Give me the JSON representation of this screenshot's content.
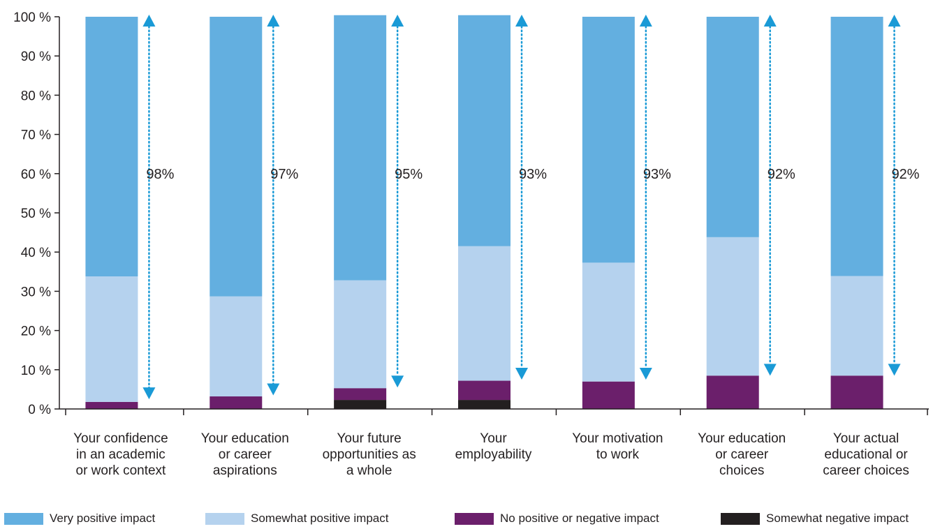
{
  "chart_data": {
    "type": "bar",
    "stacked": true,
    "ylim": [
      0,
      100
    ],
    "y_ticks": [
      "0 %",
      "10 %",
      "20 %",
      "30 %",
      "40 %",
      "50 %",
      "60 %",
      "70 %",
      "80 %",
      "90 %",
      "100 %"
    ],
    "categories": [
      [
        "Your confidence",
        "in an academic",
        "or work context"
      ],
      [
        "Your education",
        "or career",
        "aspirations"
      ],
      [
        "Your future",
        "opportunities as",
        "a whole"
      ],
      [
        "Your",
        "employability"
      ],
      [
        "Your motivation",
        "to work"
      ],
      [
        "Your education",
        "or career",
        "choices"
      ],
      [
        "Your actual",
        "educational or",
        "career choices"
      ]
    ],
    "series": [
      {
        "name": "Somewhat negative impact",
        "color": "#231f20",
        "values": [
          0,
          0,
          2.3,
          2.3,
          0,
          0,
          0
        ]
      },
      {
        "name": "No positive or negative impact",
        "color": "#6b1f6b",
        "values": [
          1.8,
          3.2,
          3.0,
          4.9,
          7.0,
          8.5,
          8.5
        ]
      },
      {
        "name": "Somewhat positive impact",
        "color": "#b5d2ee",
        "values": [
          32.0,
          25.5,
          27.5,
          34.3,
          30.3,
          35.3,
          25.4
        ]
      },
      {
        "name": "Very positive impact",
        "color": "#63afe0",
        "values": [
          66.2,
          71.3,
          67.6,
          58.9,
          62.7,
          56.2,
          66.1
        ]
      }
    ],
    "annotations": [
      {
        "text": "98%",
        "from": 100,
        "to": 3
      },
      {
        "text": "97%",
        "from": 100,
        "to": 4
      },
      {
        "text": "95%",
        "from": 100,
        "to": 6
      },
      {
        "text": "93%",
        "from": 100,
        "to": 8
      },
      {
        "text": "93%",
        "from": 100,
        "to": 8
      },
      {
        "text": "92%",
        "from": 100,
        "to": 9
      },
      {
        "text": "92%",
        "from": 100,
        "to": 9
      }
    ],
    "annotation_color": "#1a9ad6",
    "axis_color": "#231f20",
    "legend_placement": "bottom",
    "grid": false
  },
  "legend": [
    {
      "label": "Very positive impact",
      "color": "#63afe0"
    },
    {
      "label": "Somewhat positive impact",
      "color": "#b5d2ee"
    },
    {
      "label": "No positive or negative impact",
      "color": "#6b1f6b"
    },
    {
      "label": "Somewhat negative impact",
      "color": "#231f20"
    }
  ]
}
